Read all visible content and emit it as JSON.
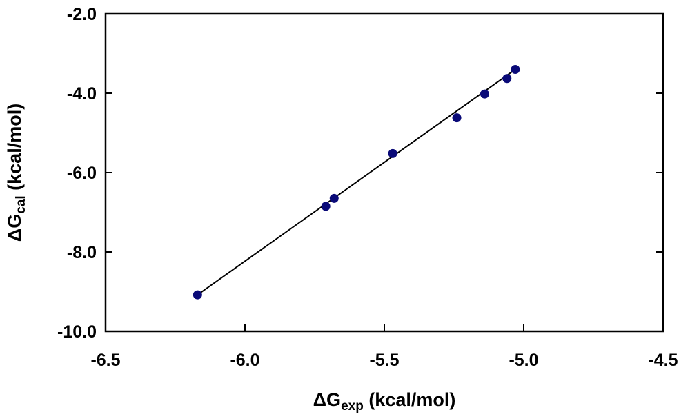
{
  "chart_data": {
    "type": "scatter",
    "xlabel": {
      "main": "ΔG",
      "sub": "exp",
      "unit": " (kcal/mol)"
    },
    "ylabel": {
      "main": "ΔG",
      "sub": "cal",
      "unit": " (kcal/mol)"
    },
    "xlim": [
      -6.5,
      -4.5
    ],
    "ylim": [
      -10.0,
      -2.0
    ],
    "xticks": [
      -6.5,
      -6.0,
      -5.5,
      -5.0,
      -4.5
    ],
    "xtick_labels": [
      "-6.5",
      "-6.0",
      "-5.5",
      "-5.0",
      "-4.5"
    ],
    "yticks": [
      -2.0,
      -4.0,
      -6.0,
      -8.0,
      -10.0
    ],
    "ytick_labels": [
      "-2.0",
      "-4.0",
      "-6.0",
      "-8.0",
      "-10.0"
    ],
    "grid": false,
    "series": [
      {
        "points": [
          {
            "x": -6.17,
            "y": -9.08
          },
          {
            "x": -5.71,
            "y": -6.85
          },
          {
            "x": -5.68,
            "y": -6.65
          },
          {
            "x": -5.47,
            "y": -5.52
          },
          {
            "x": -5.24,
            "y": -4.62
          },
          {
            "x": -5.14,
            "y": -4.02
          },
          {
            "x": -5.06,
            "y": -3.63
          },
          {
            "x": -5.03,
            "y": -3.4
          }
        ],
        "color": "#0a0a78"
      }
    ],
    "trendline": {
      "x": [
        -6.17,
        -5.03
      ],
      "y": [
        -9.08,
        -3.4
      ],
      "color": "#000000"
    }
  }
}
